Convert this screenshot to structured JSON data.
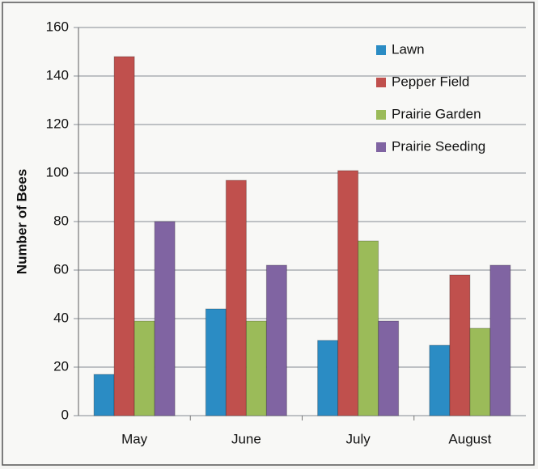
{
  "chart_data": {
    "type": "bar",
    "ylabel": "Number of Bees",
    "categories": [
      "May",
      "June",
      "July",
      "August"
    ],
    "series": [
      {
        "name": "Lawn",
        "color": "#2b8cc4",
        "values": [
          17,
          44,
          31,
          29
        ]
      },
      {
        "name": "Pepper Field",
        "color": "#c0504d",
        "values": [
          148,
          97,
          101,
          58
        ]
      },
      {
        "name": "Prairie Garden",
        "color": "#9bbb59",
        "values": [
          39,
          39,
          72,
          36
        ]
      },
      {
        "name": "Prairie Seeding",
        "color": "#8064a2",
        "values": [
          80,
          62,
          39,
          62
        ]
      }
    ],
    "ylim": [
      0,
      160
    ],
    "yticks": [
      0,
      20,
      40,
      60,
      80,
      100,
      120,
      140,
      160
    ],
    "grid": true,
    "legend": "upper right"
  }
}
